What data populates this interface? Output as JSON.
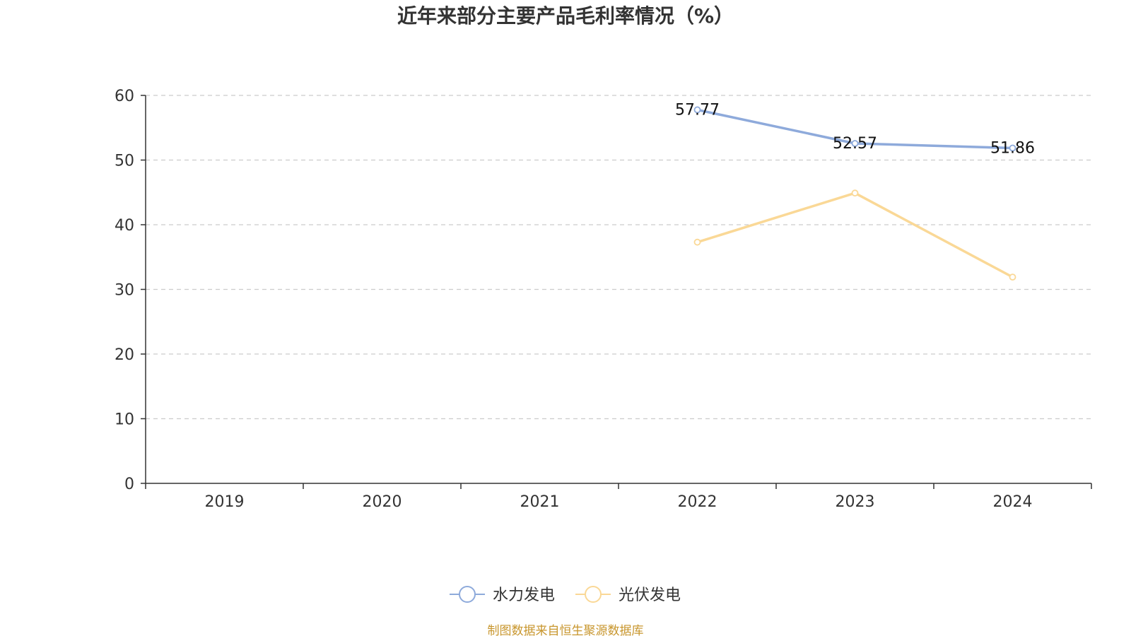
{
  "chart_data": {
    "type": "line",
    "title": "近年来部分主要产品毛利率情况（%）",
    "categories": [
      "2019",
      "2020",
      "2021",
      "2022",
      "2023",
      "2024"
    ],
    "ylim": [
      0,
      60
    ],
    "yticks": [
      0,
      10,
      20,
      30,
      40,
      50,
      60
    ],
    "grid": true,
    "legend_position": "bottom-center",
    "series": [
      {
        "name": "水力发电",
        "color": "#8eaadb",
        "values": [
          null,
          null,
          null,
          57.77,
          52.57,
          51.86
        ],
        "labels": [
          "",
          "",
          "",
          "57.77",
          "52.57",
          "51.86"
        ]
      },
      {
        "name": "光伏发电",
        "color": "#fad896",
        "values": [
          null,
          null,
          null,
          37.3,
          44.9,
          31.9
        ],
        "labels": [
          "",
          "",
          "",
          "",
          "",
          ""
        ]
      }
    ]
  },
  "source": {
    "text": "制图数据来自恒生聚源数据库",
    "color": "#c8962d"
  }
}
